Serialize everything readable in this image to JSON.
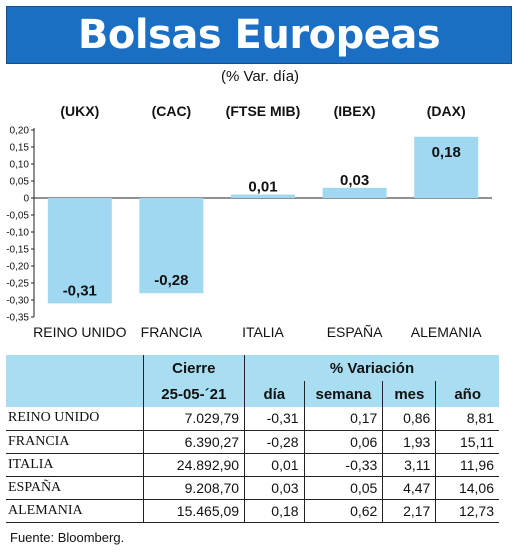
{
  "title": "Bolsas Europeas",
  "subtitle": "(% Var. día)",
  "colors": {
    "header": "#1a6fc4",
    "bar": "#9fd8f0",
    "table_header": "#a9def2"
  },
  "chart_data": {
    "type": "bar",
    "indices": [
      "(UKX)",
      "(CAC)",
      "(FTSE MIB)",
      "(IBEX)",
      "(DAX)"
    ],
    "categories": [
      "REINO UNIDO",
      "FRANCIA",
      "ITALIA",
      "ESPAÑA",
      "ALEMANIA"
    ],
    "values": [
      -0.31,
      -0.28,
      0.01,
      0.03,
      0.18
    ],
    "value_labels": [
      "-0,31",
      "-0,28",
      "0,01",
      "0,03",
      "0,18"
    ],
    "ylim": [
      -0.35,
      0.2
    ],
    "yticks": [
      0.2,
      0.15,
      0.1,
      0.05,
      0,
      -0.05,
      -0.1,
      -0.15,
      -0.2,
      -0.25,
      -0.3,
      -0.35
    ],
    "ytick_labels": [
      "0,20",
      "0,15",
      "0,10",
      "0,05",
      "0",
      "-0,05",
      "-0,10",
      "-0,15",
      "-0,20",
      "-0,25",
      "-0,30",
      "-0,35"
    ],
    "grid": false
  },
  "table": {
    "header_cierre": "Cierre",
    "header_variacion": "% Variación",
    "date": "25-05-´21",
    "columns": [
      "día",
      "semana",
      "mes",
      "año"
    ],
    "rows": [
      {
        "name": "REINO UNIDO",
        "cierre": "7.029,79",
        "dia": "-0,31",
        "semana": "0,17",
        "mes": "0,86",
        "ano": "8,81"
      },
      {
        "name": "FRANCIA",
        "cierre": "6.390,27",
        "dia": "-0,28",
        "semana": "0,06",
        "mes": "1,93",
        "ano": "15,11"
      },
      {
        "name": "ITALIA",
        "cierre": "24.892,90",
        "dia": "0,01",
        "semana": "-0,33",
        "mes": "3,11",
        "ano": "11,96"
      },
      {
        "name": "ESPAÑA",
        "cierre": "9.208,70",
        "dia": "0,03",
        "semana": "0,05",
        "mes": "4,47",
        "ano": "14,06"
      },
      {
        "name": "ALEMANIA",
        "cierre": "15.465,09",
        "dia": "0,18",
        "semana": "0,62",
        "mes": "2,17",
        "ano": "12,73"
      }
    ]
  },
  "source": "Fuente: Bloomberg."
}
